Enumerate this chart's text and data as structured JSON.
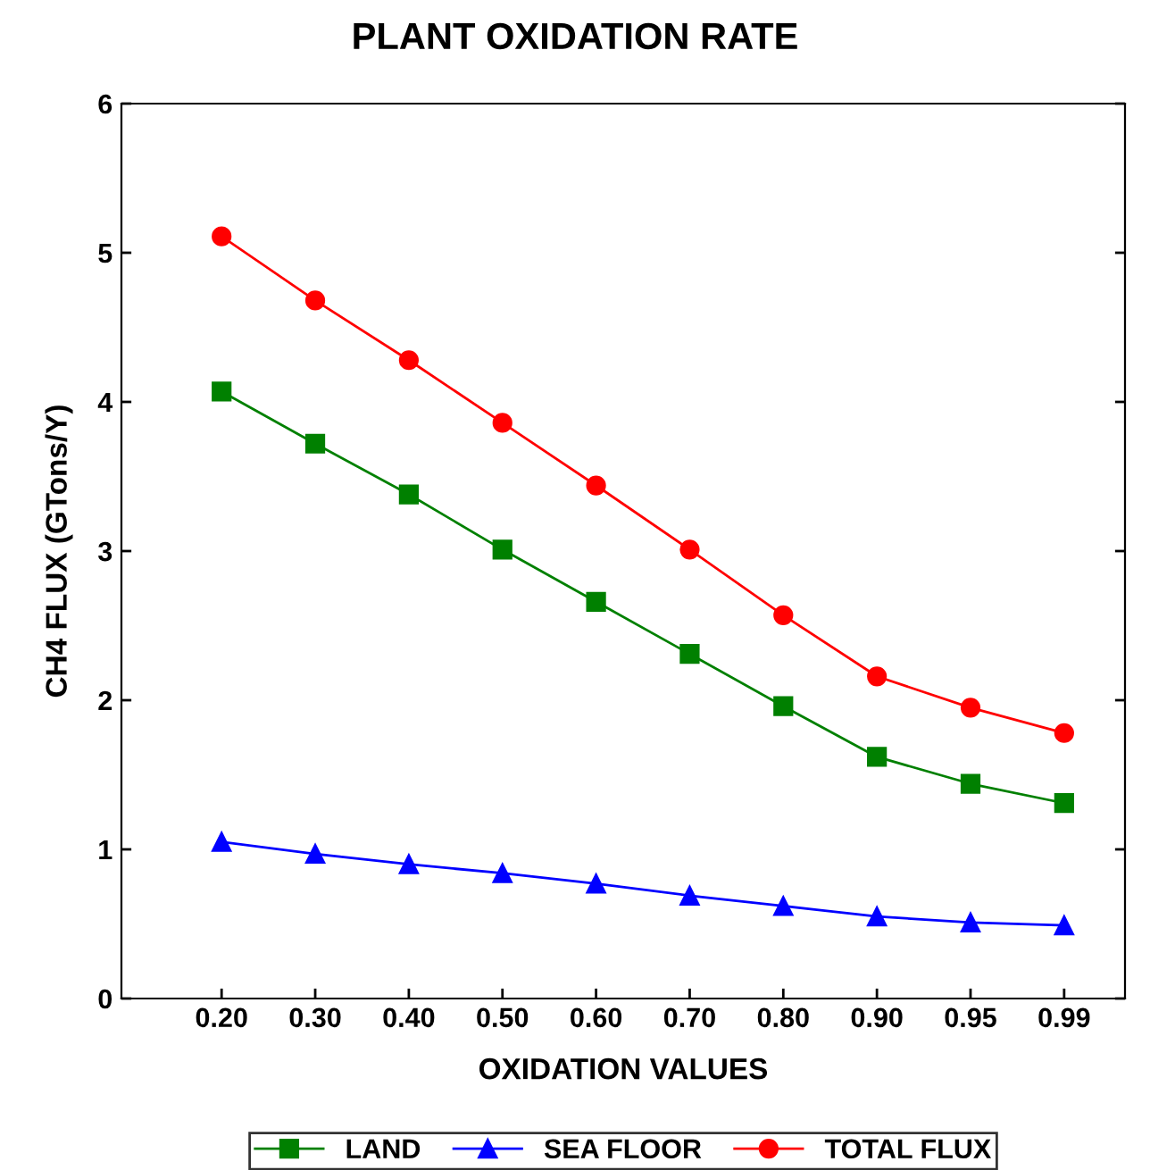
{
  "chart_data": {
    "type": "line",
    "title": "PLANT OXIDATION RATE",
    "xlabel": "OXIDATION VALUES",
    "ylabel": "CH4 FLUX (GTons/Y)",
    "categories": [
      "0.20",
      "0.30",
      "0.40",
      "0.50",
      "0.60",
      "0.70",
      "0.80",
      "0.90",
      "0.95",
      "0.99"
    ],
    "series": [
      {
        "name": "LAND",
        "color": "#008000",
        "marker": "square",
        "values": [
          4.07,
          3.72,
          3.38,
          3.01,
          2.66,
          2.31,
          1.96,
          1.62,
          1.44,
          1.31
        ]
      },
      {
        "name": "SEA FLOOR",
        "color": "#0000ff",
        "marker": "triangle",
        "values": [
          1.05,
          0.97,
          0.9,
          0.84,
          0.77,
          0.69,
          0.62,
          0.55,
          0.51,
          0.49
        ]
      },
      {
        "name": "TOTAL FLUX",
        "color": "#ff0000",
        "marker": "circle",
        "values": [
          5.11,
          4.68,
          4.28,
          3.86,
          3.44,
          3.01,
          2.57,
          2.16,
          1.95,
          1.78
        ]
      }
    ],
    "ylim": [
      0,
      6
    ],
    "yticks": [
      0,
      1,
      2,
      3,
      4,
      5,
      6
    ],
    "grid": false,
    "legend": "bottom",
    "line_style": "solid"
  }
}
